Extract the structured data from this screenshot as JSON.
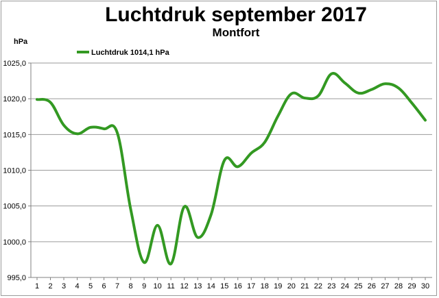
{
  "chart_data": {
    "type": "line",
    "title": "Luchtdruk september 2017",
    "subtitle": "Montfort",
    "ylabel": "hPa",
    "xlabel": "",
    "ylim": [
      995,
      1025
    ],
    "ytick_step": 5,
    "ytick_labels": [
      "995,0",
      "1000,0",
      "1005,0",
      "1010,0",
      "1015,0",
      "1020,0",
      "1025,0"
    ],
    "x": [
      1,
      2,
      3,
      4,
      5,
      6,
      7,
      8,
      9,
      10,
      11,
      12,
      13,
      14,
      15,
      16,
      17,
      18,
      19,
      20,
      21,
      22,
      23,
      24,
      25,
      26,
      27,
      28,
      29,
      30
    ],
    "grid": true,
    "legend_position": "top-left",
    "series": [
      {
        "name": "Luchtdruk 1014,1 hPa",
        "color": "#339922",
        "values": [
          1019.9,
          1019.5,
          1016.3,
          1015.1,
          1016.0,
          1015.8,
          1015.2,
          1004.5,
          997.1,
          1002.3,
          996.9,
          1004.9,
          1000.6,
          1003.8,
          1011.4,
          1010.5,
          1012.4,
          1013.9,
          1017.6,
          1020.7,
          1020.1,
          1020.4,
          1023.5,
          1022.2,
          1020.8,
          1021.3,
          1022.1,
          1021.5,
          1019.4,
          1017.0
        ]
      }
    ]
  }
}
